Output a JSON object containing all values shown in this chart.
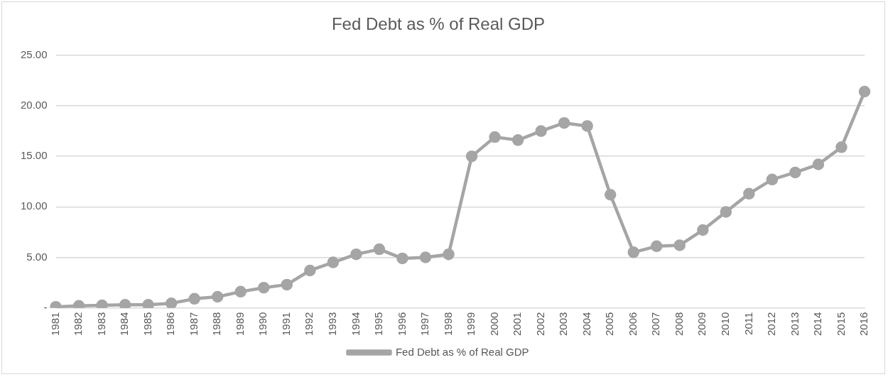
{
  "chart_data": {
    "type": "line",
    "title": "Fed Debt as % of Real GDP",
    "categories": [
      "1981",
      "1982",
      "1983",
      "1984",
      "1985",
      "1986",
      "1987",
      "1988",
      "1989",
      "1990",
      "1991",
      "1992",
      "1993",
      "1994",
      "1995",
      "1996",
      "1997",
      "1998",
      "1999",
      "2000",
      "2001",
      "2002",
      "2003",
      "2004",
      "2005",
      "2006",
      "2007",
      "2008",
      "2009",
      "2010",
      "2011",
      "2012",
      "2013",
      "2014",
      "2015",
      "2016"
    ],
    "series": [
      {
        "name": "Fed Debt as % of Real GDP",
        "color": "#a5a5a5",
        "values": [
          0.1,
          0.2,
          0.25,
          0.3,
          0.3,
          0.45,
          0.9,
          1.1,
          1.6,
          2.0,
          2.3,
          3.7,
          4.5,
          5.3,
          5.8,
          4.9,
          5.0,
          5.3,
          15.0,
          16.9,
          16.6,
          17.5,
          18.3,
          18.0,
          11.2,
          5.5,
          6.1,
          6.2,
          7.7,
          9.5,
          11.3,
          12.7,
          13.4,
          14.2,
          15.9,
          21.4
        ]
      }
    ],
    "ylim": [
      0,
      25
    ],
    "yticks": [
      {
        "value": 0,
        "label": "-"
      },
      {
        "value": 5,
        "label": "5.00"
      },
      {
        "value": 10,
        "label": "10.00"
      },
      {
        "value": 15,
        "label": "15.00"
      },
      {
        "value": 20,
        "label": "20.00"
      },
      {
        "value": 25,
        "label": "25.00"
      }
    ],
    "grid": "y",
    "legend": "bottom",
    "marker": "circle",
    "line_style": "solid"
  }
}
